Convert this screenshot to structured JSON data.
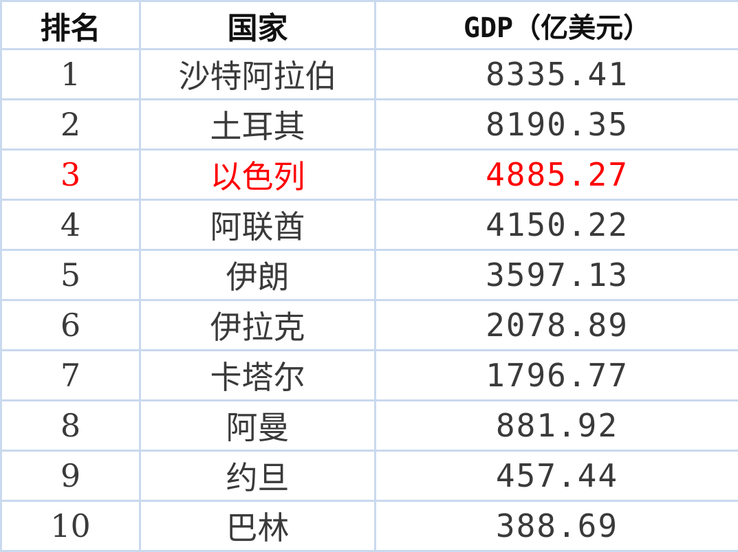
{
  "table": {
    "headers": {
      "rank": "排名",
      "country": "国家",
      "gdp": "GDP（亿美元）"
    },
    "highlight_color": "#ff0000",
    "rows": [
      {
        "rank": "1",
        "country": "沙特阿拉伯",
        "gdp": "8335.41",
        "highlight": false
      },
      {
        "rank": "2",
        "country": "土耳其",
        "gdp": "8190.35",
        "highlight": false
      },
      {
        "rank": "3",
        "country": "以色列",
        "gdp": "4885.27",
        "highlight": true
      },
      {
        "rank": "4",
        "country": "阿联酋",
        "gdp": "4150.22",
        "highlight": false
      },
      {
        "rank": "5",
        "country": "伊朗",
        "gdp": "3597.13",
        "highlight": false
      },
      {
        "rank": "6",
        "country": "伊拉克",
        "gdp": "2078.89",
        "highlight": false
      },
      {
        "rank": "7",
        "country": "卡塔尔",
        "gdp": "1796.77",
        "highlight": false
      },
      {
        "rank": "8",
        "country": "阿曼",
        "gdp": "881.92",
        "highlight": false
      },
      {
        "rank": "9",
        "country": "约旦",
        "gdp": "457.44",
        "highlight": false
      },
      {
        "rank": "10",
        "country": "巴林",
        "gdp": "388.69",
        "highlight": false
      }
    ]
  }
}
